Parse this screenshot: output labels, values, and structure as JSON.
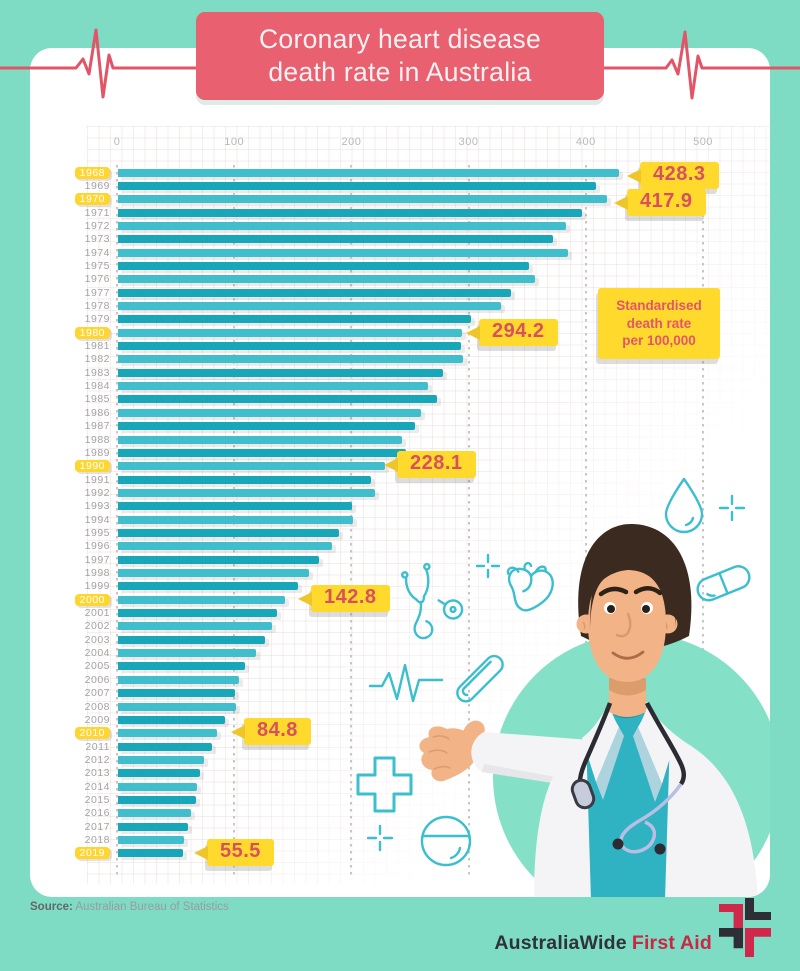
{
  "header": {
    "title_line1": "Coronary heart disease",
    "title_line2": "death rate in Australia"
  },
  "chart_data": {
    "type": "bar",
    "orientation": "horizontal",
    "title": "Coronary heart disease death rate in Australia",
    "xlabel": "Standardised death rate per 100,000",
    "xlim": [
      0,
      500
    ],
    "x_ticks": [
      0,
      100,
      200,
      300,
      400,
      500
    ],
    "categories": [
      1968,
      1969,
      1970,
      1971,
      1972,
      1973,
      1974,
      1975,
      1976,
      1977,
      1978,
      1979,
      1980,
      1981,
      1982,
      1983,
      1984,
      1985,
      1986,
      1987,
      1988,
      1989,
      1990,
      1991,
      1992,
      1993,
      1994,
      1995,
      1996,
      1997,
      1998,
      1999,
      2000,
      2001,
      2002,
      2003,
      2004,
      2005,
      2006,
      2007,
      2008,
      2009,
      2010,
      2011,
      2012,
      2013,
      2014,
      2015,
      2016,
      2017,
      2018,
      2019
    ],
    "values": [
      428.3,
      408,
      417.9,
      396,
      383,
      372,
      384,
      351,
      356,
      336,
      327,
      302,
      294.2,
      293,
      295,
      278,
      265,
      273,
      259,
      254,
      243,
      246,
      228.1,
      216,
      220,
      200,
      201,
      189,
      183,
      172,
      163,
      154,
      142.8,
      136,
      132,
      126,
      118,
      109,
      104,
      100,
      101,
      92,
      84.8,
      81,
      74,
      70,
      68,
      67,
      63,
      60,
      57,
      55.5
    ],
    "highlighted_years": [
      1968,
      1970,
      1980,
      1990,
      2000,
      2010,
      2019
    ],
    "callouts": {
      "1968": "428.3",
      "1970": "417.9",
      "1980": "294.2",
      "1990": "228.1",
      "2000": "142.8",
      "2010": "84.8",
      "2019": "55.5"
    },
    "unit_note": [
      "Standardised",
      "death rate",
      "per 100,000"
    ]
  },
  "source": {
    "label": "Source:",
    "text": " Australian Bureau of Statistics"
  },
  "logo": {
    "brand_black": "AustraliaWide",
    "brand_red": "First Aid"
  },
  "icons": [
    "stethoscope-icon",
    "crosshair-icon",
    "heart-icon",
    "water-drop-icon",
    "pill-capsule-icon",
    "ecg-line-icon",
    "test-tube-icon",
    "medical-cross-icon",
    "tablet-icon",
    "doctor-illustration"
  ],
  "colors": {
    "background": "#7EDCC4",
    "card": "#FFFFFF",
    "title_bg": "#E96070",
    "ecg_line": "#E25566",
    "bar_light": "#41BECC",
    "bar_dark": "#18A7B8",
    "callout_bg": "#FFD92B",
    "callout_text": "#D8505F",
    "icon_teal": "#3BBFCE",
    "year_highlight_bg": "#FFD630",
    "doctor_circle": "#84E1C8"
  }
}
